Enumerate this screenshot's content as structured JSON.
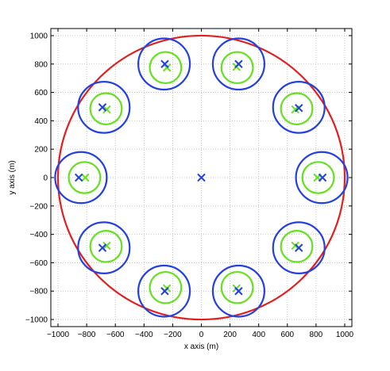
{
  "chart_data": {
    "type": "scatter",
    "title": "",
    "xlabel": "x axis (m)",
    "ylabel": "y axis (m)",
    "xlim": [
      -1050,
      1050
    ],
    "ylim": [
      -1050,
      1050
    ],
    "xticks": [
      -1000,
      -800,
      -600,
      -400,
      -200,
      0,
      200,
      400,
      600,
      800,
      1000
    ],
    "yticks": [
      -1000,
      -800,
      -600,
      -400,
      -200,
      0,
      200,
      400,
      600,
      800,
      1000
    ],
    "grid": true,
    "grid_style": "dotted",
    "colors": {
      "boundary": "#e02020",
      "blue": "#2440e0",
      "green": "#66e020"
    },
    "boundary_circle": {
      "center": [
        0,
        0
      ],
      "radius": 1000
    },
    "center_marker": {
      "x": 0,
      "y": 0
    },
    "blue_circles": {
      "radius": 180,
      "centers": [
        [
          260,
          800
        ],
        [
          680,
          495
        ],
        [
          840,
          0
        ],
        [
          680,
          -495
        ],
        [
          260,
          -800
        ],
        [
          -260,
          -800
        ],
        [
          -680,
          -495
        ],
        [
          -840,
          0
        ],
        [
          -680,
          495
        ],
        [
          -260,
          800
        ]
      ]
    },
    "green_circles": {
      "radius": 110,
      "centers": [
        [
          250,
          775
        ],
        [
          665,
          485
        ],
        [
          815,
          0
        ],
        [
          665,
          -485
        ],
        [
          250,
          -775
        ],
        [
          -250,
          -775
        ],
        [
          -665,
          -485
        ],
        [
          -815,
          0
        ],
        [
          -665,
          485
        ],
        [
          -250,
          775
        ]
      ]
    },
    "blue_markers": [
      [
        260,
        800
      ],
      [
        680,
        490
      ],
      [
        845,
        0
      ],
      [
        680,
        -495
      ],
      [
        260,
        -800
      ],
      [
        -255,
        -800
      ],
      [
        -690,
        -495
      ],
      [
        -855,
        0
      ],
      [
        -690,
        495
      ],
      [
        -255,
        800
      ]
    ],
    "green_markers": [
      [
        245,
        780
      ],
      [
        655,
        480
      ],
      [
        810,
        0
      ],
      [
        655,
        -480
      ],
      [
        245,
        -780
      ],
      [
        -240,
        -780
      ],
      [
        -660,
        -480
      ],
      [
        -810,
        0
      ],
      [
        -660,
        480
      ],
      [
        -240,
        775
      ]
    ]
  }
}
